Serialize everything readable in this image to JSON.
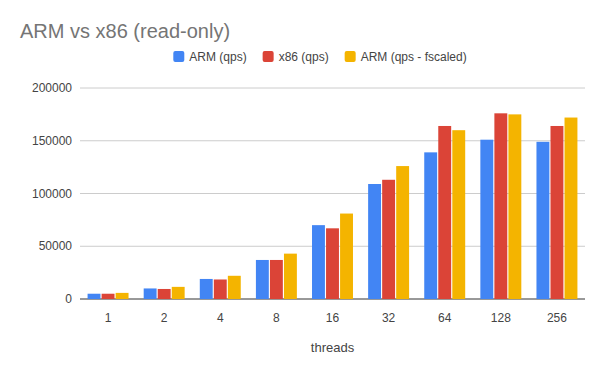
{
  "chart_data": {
    "type": "bar",
    "title": "ARM vs x86 (read-only)",
    "x_label": "threads",
    "categories": [
      "1",
      "2",
      "4",
      "8",
      "16",
      "32",
      "64",
      "128",
      "256"
    ],
    "series": [
      {
        "name": "ARM (qps)",
        "color": "#4285f4",
        "values": [
          5000,
          10000,
          19000,
          37000,
          70000,
          109000,
          139000,
          151000,
          149000
        ]
      },
      {
        "name": "x86 (qps)",
        "color": "#db4437",
        "values": [
          5000,
          9500,
          18500,
          37000,
          67000,
          113000,
          164000,
          176000,
          164000
        ]
      },
      {
        "name": "ARM (qps - fscaled)",
        "color": "#f4b400",
        "values": [
          5800,
          11500,
          22000,
          43000,
          81000,
          126000,
          160000,
          175000,
          172000
        ]
      }
    ],
    "ylim": [
      0,
      200000
    ],
    "yticks": [
      0,
      50000,
      100000,
      150000,
      200000
    ],
    "grid": true,
    "legend": "top"
  }
}
